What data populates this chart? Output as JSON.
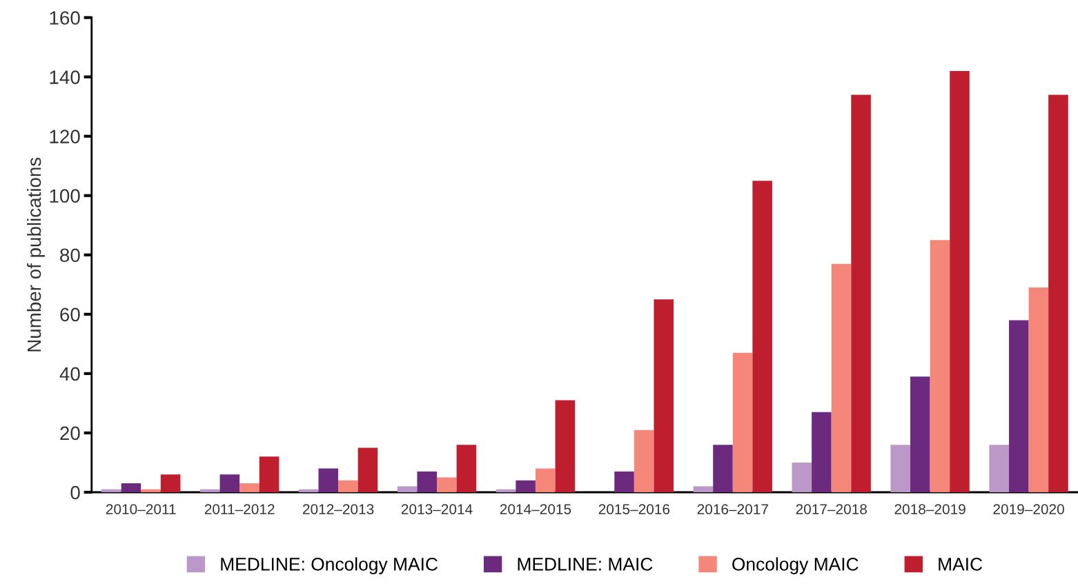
{
  "chart_data": {
    "type": "bar",
    "ylabel": "Number of publications",
    "categories": [
      "2010–2011",
      "2011–2012",
      "2012–2013",
      "2013–2014",
      "2014–2015",
      "2015–2016",
      "2016–2017",
      "2017–2018",
      "2018–2019",
      "2019–2020"
    ],
    "series": [
      {
        "name": "MEDLINE: Oncology MAIC",
        "color": "#bc98c8",
        "values": [
          1,
          1,
          1,
          2,
          1,
          0,
          2,
          10,
          16,
          16
        ]
      },
      {
        "name": "MEDLINE: MAIC",
        "color": "#6b2a7e",
        "values": [
          3,
          6,
          8,
          7,
          4,
          7,
          16,
          27,
          39,
          58
        ]
      },
      {
        "name": "Oncology MAIC",
        "color": "#f4867a",
        "values": [
          1,
          3,
          4,
          5,
          8,
          21,
          47,
          77,
          85,
          69
        ]
      },
      {
        "name": "MAIC",
        "color": "#be1e2d",
        "values": [
          6,
          12,
          15,
          16,
          31,
          65,
          105,
          134,
          142,
          134
        ]
      }
    ],
    "ylim": [
      0,
      160
    ],
    "yticks": [
      0,
      20,
      40,
      60,
      80,
      100,
      120,
      140,
      160
    ],
    "grid": false,
    "legend": "bottom"
  }
}
